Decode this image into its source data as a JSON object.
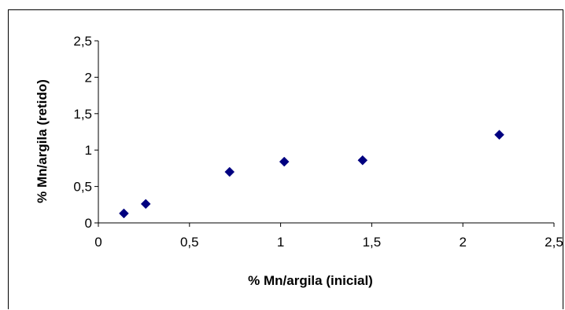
{
  "chart_data": {
    "type": "scatter",
    "title": "",
    "xlabel": "% Mn/argila (inicial)",
    "ylabel": "% Mn/argila (retido)",
    "xlim": [
      0,
      2.5
    ],
    "ylim": [
      0,
      2.5
    ],
    "x_ticks": [
      0,
      0.5,
      1,
      1.5,
      2,
      2.5
    ],
    "x_tick_labels": [
      "0",
      "0,5",
      "1",
      "1,5",
      "2",
      "2,5"
    ],
    "y_ticks": [
      0,
      0.5,
      1,
      1.5,
      2,
      2.5
    ],
    "y_tick_labels": [
      "0",
      "0,5",
      "1",
      "1,5",
      "2",
      "2,5"
    ],
    "grid": false,
    "legend": "none",
    "marker": "diamond",
    "marker_color": "#000080",
    "series": [
      {
        "x": [
          0.14,
          0.26,
          0.72,
          1.02,
          1.45,
          2.2
        ],
        "y": [
          0.13,
          0.26,
          0.7,
          0.84,
          0.86,
          1.21
        ]
      }
    ]
  }
}
